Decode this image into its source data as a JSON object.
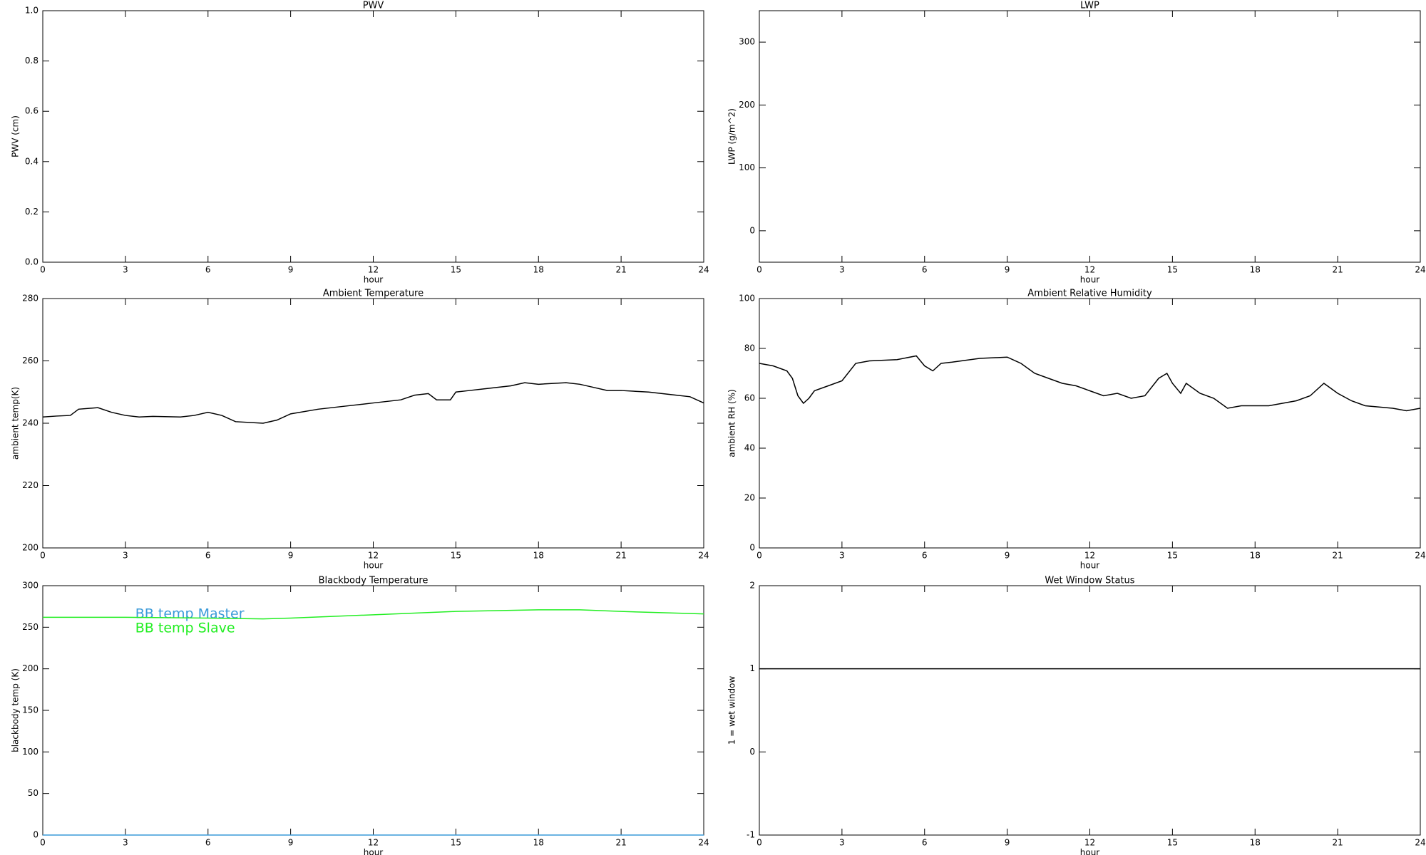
{
  "chart_data": [
    {
      "type": "line",
      "title": "PWV",
      "xlabel": "hour",
      "ylabel": "PWV (cm)",
      "xlim": [
        0,
        24
      ],
      "xticks": [
        0,
        3,
        6,
        9,
        12,
        15,
        18,
        21,
        24
      ],
      "ylim": [
        0,
        1
      ],
      "yticks": [
        {
          "value": 0,
          "label": "0.0"
        },
        0.2,
        0.4,
        0.6,
        0.8,
        {
          "value": 1,
          "label": "1.0"
        }
      ],
      "x": [],
      "series": []
    },
    {
      "type": "line",
      "title": "LWP",
      "xlabel": "hour",
      "ylabel": "LWP (g/m^2)",
      "xlim": [
        0,
        24
      ],
      "xticks": [
        0,
        3,
        6,
        9,
        12,
        15,
        18,
        21,
        24
      ],
      "ylim": [
        -50,
        350
      ],
      "yticks": [
        0,
        100,
        200,
        300
      ],
      "x": [],
      "series": []
    },
    {
      "type": "line",
      "title": "Ambient Temperature",
      "xlabel": "hour",
      "ylabel": "ambient temp(K)",
      "xlim": [
        0,
        24
      ],
      "xticks": [
        0,
        3,
        6,
        9,
        12,
        15,
        18,
        21,
        24
      ],
      "ylim": [
        200,
        280
      ],
      "yticks": [
        200,
        220,
        240,
        260,
        280
      ],
      "x": [
        0,
        0.5,
        1,
        1.3,
        2,
        2.5,
        3,
        3.5,
        4,
        5,
        5.5,
        6,
        6.5,
        7,
        8,
        8.5,
        9,
        10,
        11,
        12,
        13,
        13.5,
        14,
        14.3,
        14.8,
        15,
        15.5,
        16,
        17,
        17.5,
        18,
        19,
        19.5,
        20,
        20.5,
        21,
        22,
        23,
        23.5,
        24
      ],
      "series": [
        {
          "color": "#000000",
          "values": [
            242,
            242.3,
            242.5,
            244.5,
            245,
            243.5,
            242.5,
            242,
            242.2,
            242,
            242.5,
            243.5,
            242.5,
            240.5,
            240,
            241,
            243,
            244.5,
            245.5,
            246.5,
            247.5,
            249,
            249.5,
            247.5,
            247.5,
            250,
            250.5,
            251,
            252,
            253,
            252.5,
            253,
            252.5,
            251.5,
            250.5,
            250.5,
            250,
            249,
            248.5,
            246.5
          ]
        }
      ]
    },
    {
      "type": "line",
      "title": "Ambient Relative Humidity",
      "xlabel": "hour",
      "ylabel": "ambient RH (%)",
      "xlim": [
        0,
        24
      ],
      "xticks": [
        0,
        3,
        6,
        9,
        12,
        15,
        18,
        21,
        24
      ],
      "ylim": [
        0,
        100
      ],
      "yticks": [
        0,
        20,
        40,
        60,
        80,
        100
      ],
      "x": [
        0,
        0.5,
        1,
        1.2,
        1.4,
        1.6,
        1.8,
        2,
        2.5,
        3,
        3.5,
        4,
        5,
        5.7,
        6,
        6.3,
        6.6,
        7,
        8,
        9,
        9.5,
        10,
        10.5,
        11,
        11.5,
        12,
        12.5,
        13,
        13.5,
        14,
        14.5,
        14.8,
        15,
        15.3,
        15.5,
        16,
        16.5,
        17,
        17.5,
        18,
        18.5,
        19,
        19.5,
        20,
        20.5,
        21,
        21.5,
        22,
        23,
        23.5,
        24
      ],
      "series": [
        {
          "color": "#000000",
          "values": [
            74,
            73,
            71,
            68,
            61,
            58,
            60,
            63,
            65,
            67,
            74,
            75,
            75.5,
            77,
            73,
            71,
            74,
            74.5,
            76,
            76.5,
            74,
            70,
            68,
            66,
            65,
            63,
            61,
            62,
            60,
            61,
            68,
            70,
            66,
            62,
            66,
            62,
            60,
            56,
            57,
            57,
            57,
            58,
            59,
            61,
            66,
            62,
            59,
            57,
            56,
            55,
            56
          ]
        }
      ]
    },
    {
      "type": "line",
      "title": "Blackbody Temperature",
      "xlabel": "hour",
      "ylabel": "blackbody temp (K)",
      "xlim": [
        0,
        24
      ],
      "xticks": [
        0,
        3,
        6,
        9,
        12,
        15,
        18,
        21,
        24
      ],
      "ylim": [
        0,
        300
      ],
      "yticks": [
        0,
        50,
        100,
        150,
        200,
        250,
        300
      ],
      "x": [
        0,
        3,
        6,
        8,
        9,
        12,
        15,
        18,
        19.5,
        21,
        24
      ],
      "series": [
        {
          "name": "BB temp Master",
          "color": "#3a9ad9",
          "values": [
            0,
            0,
            0,
            0,
            0,
            0,
            0,
            0,
            0,
            0,
            0
          ]
        },
        {
          "name": "BB temp Slave",
          "color": "#22ee22",
          "values": [
            262,
            262,
            261,
            260,
            261,
            265,
            269,
            271,
            271,
            269,
            266
          ]
        }
      ]
    },
    {
      "type": "line",
      "title": "Wet Window Status",
      "xlabel": "hour",
      "ylabel": "1 = wet window",
      "xlim": [
        0,
        24
      ],
      "xticks": [
        0,
        3,
        6,
        9,
        12,
        15,
        18,
        21,
        24
      ],
      "ylim": [
        -1,
        2
      ],
      "yticks": [
        -1,
        0,
        1,
        2
      ],
      "x": [
        0,
        24
      ],
      "series": [
        {
          "color": "#000000",
          "values": [
            1,
            1
          ]
        }
      ]
    }
  ]
}
